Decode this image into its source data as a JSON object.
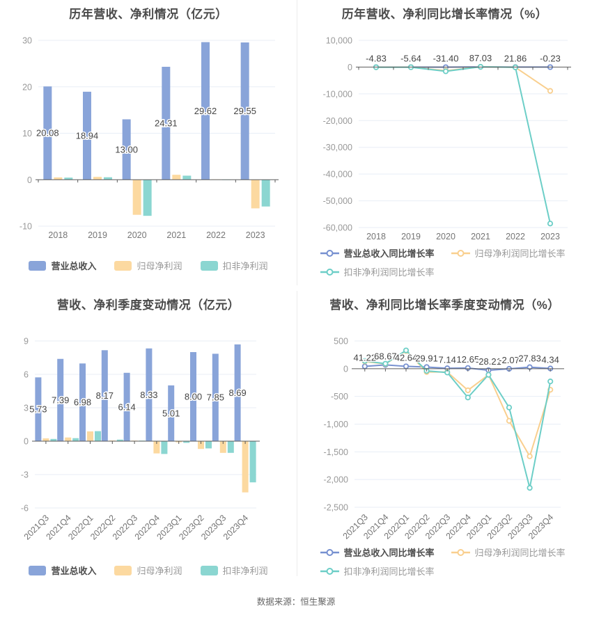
{
  "footer": {
    "source": "数据来源：恒生聚源"
  },
  "colors": {
    "background": "#FFFFFF",
    "divider": "#ECECEC",
    "grid": "#E8EEF6",
    "axis": "#5A5A5A",
    "tick_label": "#999999",
    "axis_label": "#757575",
    "value_label": "#444444",
    "title": "#4A4A4A",
    "legend_active": "#4D4D4D",
    "legend_inactive": "#999999",
    "footer_text": "#666666",
    "bar_blue": "#89A4D9",
    "bar_orange": "#FCD9A0",
    "bar_teal": "#8BD6D1",
    "line_blue": "#7690D0",
    "line_orange": "#F9CF8E",
    "line_teal": "#6CCEC7"
  },
  "chart_data": [
    {
      "type": "bar",
      "title": "历年营收、净利情况（亿元）",
      "categories": [
        "2018",
        "2019",
        "2020",
        "2021",
        "2022",
        "2023"
      ],
      "yticks": [
        30,
        20,
        10,
        0,
        -10
      ],
      "ytick_labels": [
        "30",
        "20",
        "10",
        "0",
        "-10"
      ],
      "ylim": [
        -10,
        30
      ],
      "grid": true,
      "legend_position": "bottom",
      "series": [
        {
          "name": "营业总收入",
          "color": "#89A4D9",
          "values": [
            20.08,
            18.94,
            13.0,
            24.31,
            29.62,
            29.55
          ],
          "labels": [
            "20.08",
            "18.94",
            "13.00",
            "24.31",
            "29.62",
            "29.55"
          ]
        },
        {
          "name": "归母净利润",
          "color": "#FCD9A0",
          "values": [
            0.5,
            0.61,
            -7.56,
            1.06,
            0.07,
            -6.17
          ]
        },
        {
          "name": "扣非净利润",
          "color": "#8BD6D1",
          "values": [
            0.45,
            0.53,
            -7.78,
            0.87,
            0.01,
            -5.77
          ]
        }
      ]
    },
    {
      "type": "line",
      "title": "历年营收、净利同比增长率情况（%）",
      "categories": [
        "2018",
        "2019",
        "2020",
        "2021",
        "2022",
        "2023"
      ],
      "yticks": [
        10000,
        0,
        -10000,
        -20000,
        -30000,
        -40000,
        -50000,
        -60000
      ],
      "ytick_labels": [
        "10,000",
        "0",
        "-10,000",
        "-20,000",
        "-30,000",
        "-40,000",
        "-50,000",
        "-60,000"
      ],
      "ylim": [
        -60000,
        10000
      ],
      "grid": true,
      "legend_position": "bottom",
      "series": [
        {
          "name": "营业总收入同比增长率",
          "color": "#7690D0",
          "values": [
            -4.83,
            -5.64,
            -31.4,
            87.03,
            21.86,
            -0.23
          ],
          "labels": [
            "-4.83",
            "-5.64",
            "-31.40",
            "87.03",
            "21.86",
            "-0.23"
          ]
        },
        {
          "name": "归母净利润同比增长率",
          "color": "#F9CF8E",
          "values": [
            -45,
            -35,
            -1340,
            114,
            -93,
            -8900
          ]
        },
        {
          "name": "扣非净利润同比增长率",
          "color": "#6CCEC7",
          "values": [
            -50,
            -40,
            -1568,
            111,
            -98,
            -58500
          ]
        }
      ]
    },
    {
      "type": "bar",
      "title": "营收、净利季度变动情况（亿元）",
      "categories": [
        "2021Q3",
        "2021Q4",
        "2022Q1",
        "2022Q2",
        "2022Q3",
        "2022Q4",
        "2023Q1",
        "2023Q2",
        "2023Q3",
        "2023Q4"
      ],
      "yticks": [
        9,
        6,
        3,
        0,
        -3,
        -6
      ],
      "ytick_labels": [
        "9",
        "6",
        "3",
        "0",
        "-3",
        "-6"
      ],
      "ylim": [
        -6,
        9
      ],
      "grid": true,
      "legend_position": "bottom",
      "series": [
        {
          "name": "营业总收入",
          "color": "#89A4D9",
          "values": [
            5.73,
            7.39,
            6.98,
            8.17,
            6.14,
            8.33,
            5.01,
            8.0,
            7.85,
            8.69
          ],
          "labels": [
            "5.73",
            "7.39",
            "6.98",
            "8.17",
            "6.14",
            "8.33",
            "5.01",
            "8.00",
            "7.85",
            "8.69"
          ]
        },
        {
          "name": "归母净利润",
          "color": "#FCD9A0",
          "values": [
            0.25,
            0.33,
            0.88,
            0.06,
            0.05,
            -1.1,
            -0.1,
            -0.7,
            -1.05,
            -4.6
          ]
        },
        {
          "name": "扣非净利润",
          "color": "#8BD6D1",
          "values": [
            0.2,
            0.27,
            0.9,
            0.14,
            0.05,
            -1.15,
            -0.15,
            -0.65,
            -1.05,
            -3.7
          ]
        }
      ]
    },
    {
      "type": "line",
      "title": "营收、净利同比增长率季度变动情况（%）",
      "categories": [
        "2021Q3",
        "2021Q4",
        "2022Q1",
        "2022Q2",
        "2022Q3",
        "2022Q4",
        "2023Q1",
        "2023Q2",
        "2023Q3",
        "2023Q4"
      ],
      "yticks": [
        500,
        0,
        -500,
        -1000,
        -1500,
        -2000,
        -2500
      ],
      "ytick_labels": [
        "500",
        "0",
        "-500",
        "-1,000",
        "-1,500",
        "-2,000",
        "-2,500"
      ],
      "ylim": [
        -2500,
        500
      ],
      "grid": true,
      "legend_position": "bottom",
      "series": [
        {
          "name": "营业总收入同比增长率",
          "color": "#7690D0",
          "values": [
            41.22,
            68.67,
            42.64,
            29.91,
            7.14,
            12.65,
            -28.21,
            -2.07,
            27.83,
            4.34
          ],
          "labels": [
            "41.22",
            "68.67",
            "42.64",
            "29.91",
            "7.14",
            "12.65",
            "-28.21",
            "-2.07",
            "27.83",
            "4.34"
          ]
        },
        {
          "name": "归母净利润同比增长率",
          "color": "#F9CF8E",
          "values": [
            130,
            85,
            320,
            -60,
            -60,
            -390,
            -110,
            -940,
            -1580,
            -380
          ]
        },
        {
          "name": "扣非净利润同比增长率",
          "color": "#6CCEC7",
          "values": [
            140,
            90,
            330,
            -40,
            -70,
            -520,
            -110,
            -700,
            -2150,
            -230
          ]
        }
      ]
    }
  ]
}
